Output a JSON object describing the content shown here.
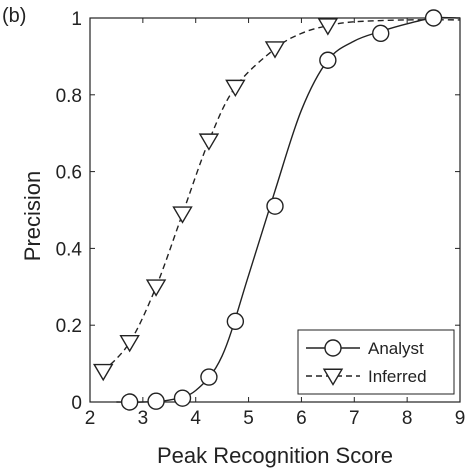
{
  "chart_data": {
    "type": "line",
    "panel_label": "(b)",
    "title": "",
    "xlabel": "Peak Recognition Score",
    "ylabel": "Precision",
    "xlim": [
      2,
      9
    ],
    "ylim": [
      0,
      1
    ],
    "xticks": [
      "2",
      "3",
      "4",
      "5",
      "6",
      "7",
      "8",
      "9"
    ],
    "yticks": [
      "0",
      "0.2",
      "0.4",
      "0.6",
      "0.8",
      "1"
    ],
    "grid": false,
    "legend_position": "bottom-right",
    "series": [
      {
        "name": "Analyst",
        "line_style": "solid",
        "marker": "circle",
        "points": [
          [
            2.75,
            0.0
          ],
          [
            3.25,
            0.002
          ],
          [
            3.75,
            0.01
          ],
          [
            4.25,
            0.065
          ],
          [
            4.75,
            0.21
          ],
          [
            5.5,
            0.51
          ],
          [
            6.5,
            0.89
          ],
          [
            7.5,
            0.96
          ],
          [
            8.5,
            1.0
          ]
        ],
        "curve": [
          [
            2.5,
            0.0
          ],
          [
            3.0,
            0.0
          ],
          [
            3.5,
            0.005
          ],
          [
            4.0,
            0.03
          ],
          [
            4.5,
            0.12
          ],
          [
            5.0,
            0.33
          ],
          [
            5.5,
            0.55
          ],
          [
            6.0,
            0.76
          ],
          [
            6.5,
            0.89
          ],
          [
            7.0,
            0.94
          ],
          [
            7.5,
            0.965
          ],
          [
            8.0,
            0.985
          ],
          [
            8.5,
            1.0
          ],
          [
            9.0,
            1.0
          ]
        ]
      },
      {
        "name": "Inferred",
        "line_style": "dashed",
        "marker": "triangle-down",
        "points": [
          [
            2.25,
            0.08
          ],
          [
            2.75,
            0.155
          ],
          [
            3.25,
            0.3
          ],
          [
            3.75,
            0.49
          ],
          [
            4.25,
            0.68
          ],
          [
            4.75,
            0.82
          ],
          [
            5.5,
            0.92
          ],
          [
            6.5,
            0.98
          ]
        ],
        "curve": [
          [
            2.25,
            0.08
          ],
          [
            2.75,
            0.155
          ],
          [
            3.25,
            0.3
          ],
          [
            3.75,
            0.49
          ],
          [
            4.25,
            0.68
          ],
          [
            4.75,
            0.82
          ],
          [
            5.5,
            0.92
          ],
          [
            6.0,
            0.96
          ],
          [
            6.5,
            0.98
          ],
          [
            7.0,
            0.99
          ],
          [
            8.0,
            0.995
          ],
          [
            9.0,
            0.995
          ]
        ]
      }
    ]
  }
}
